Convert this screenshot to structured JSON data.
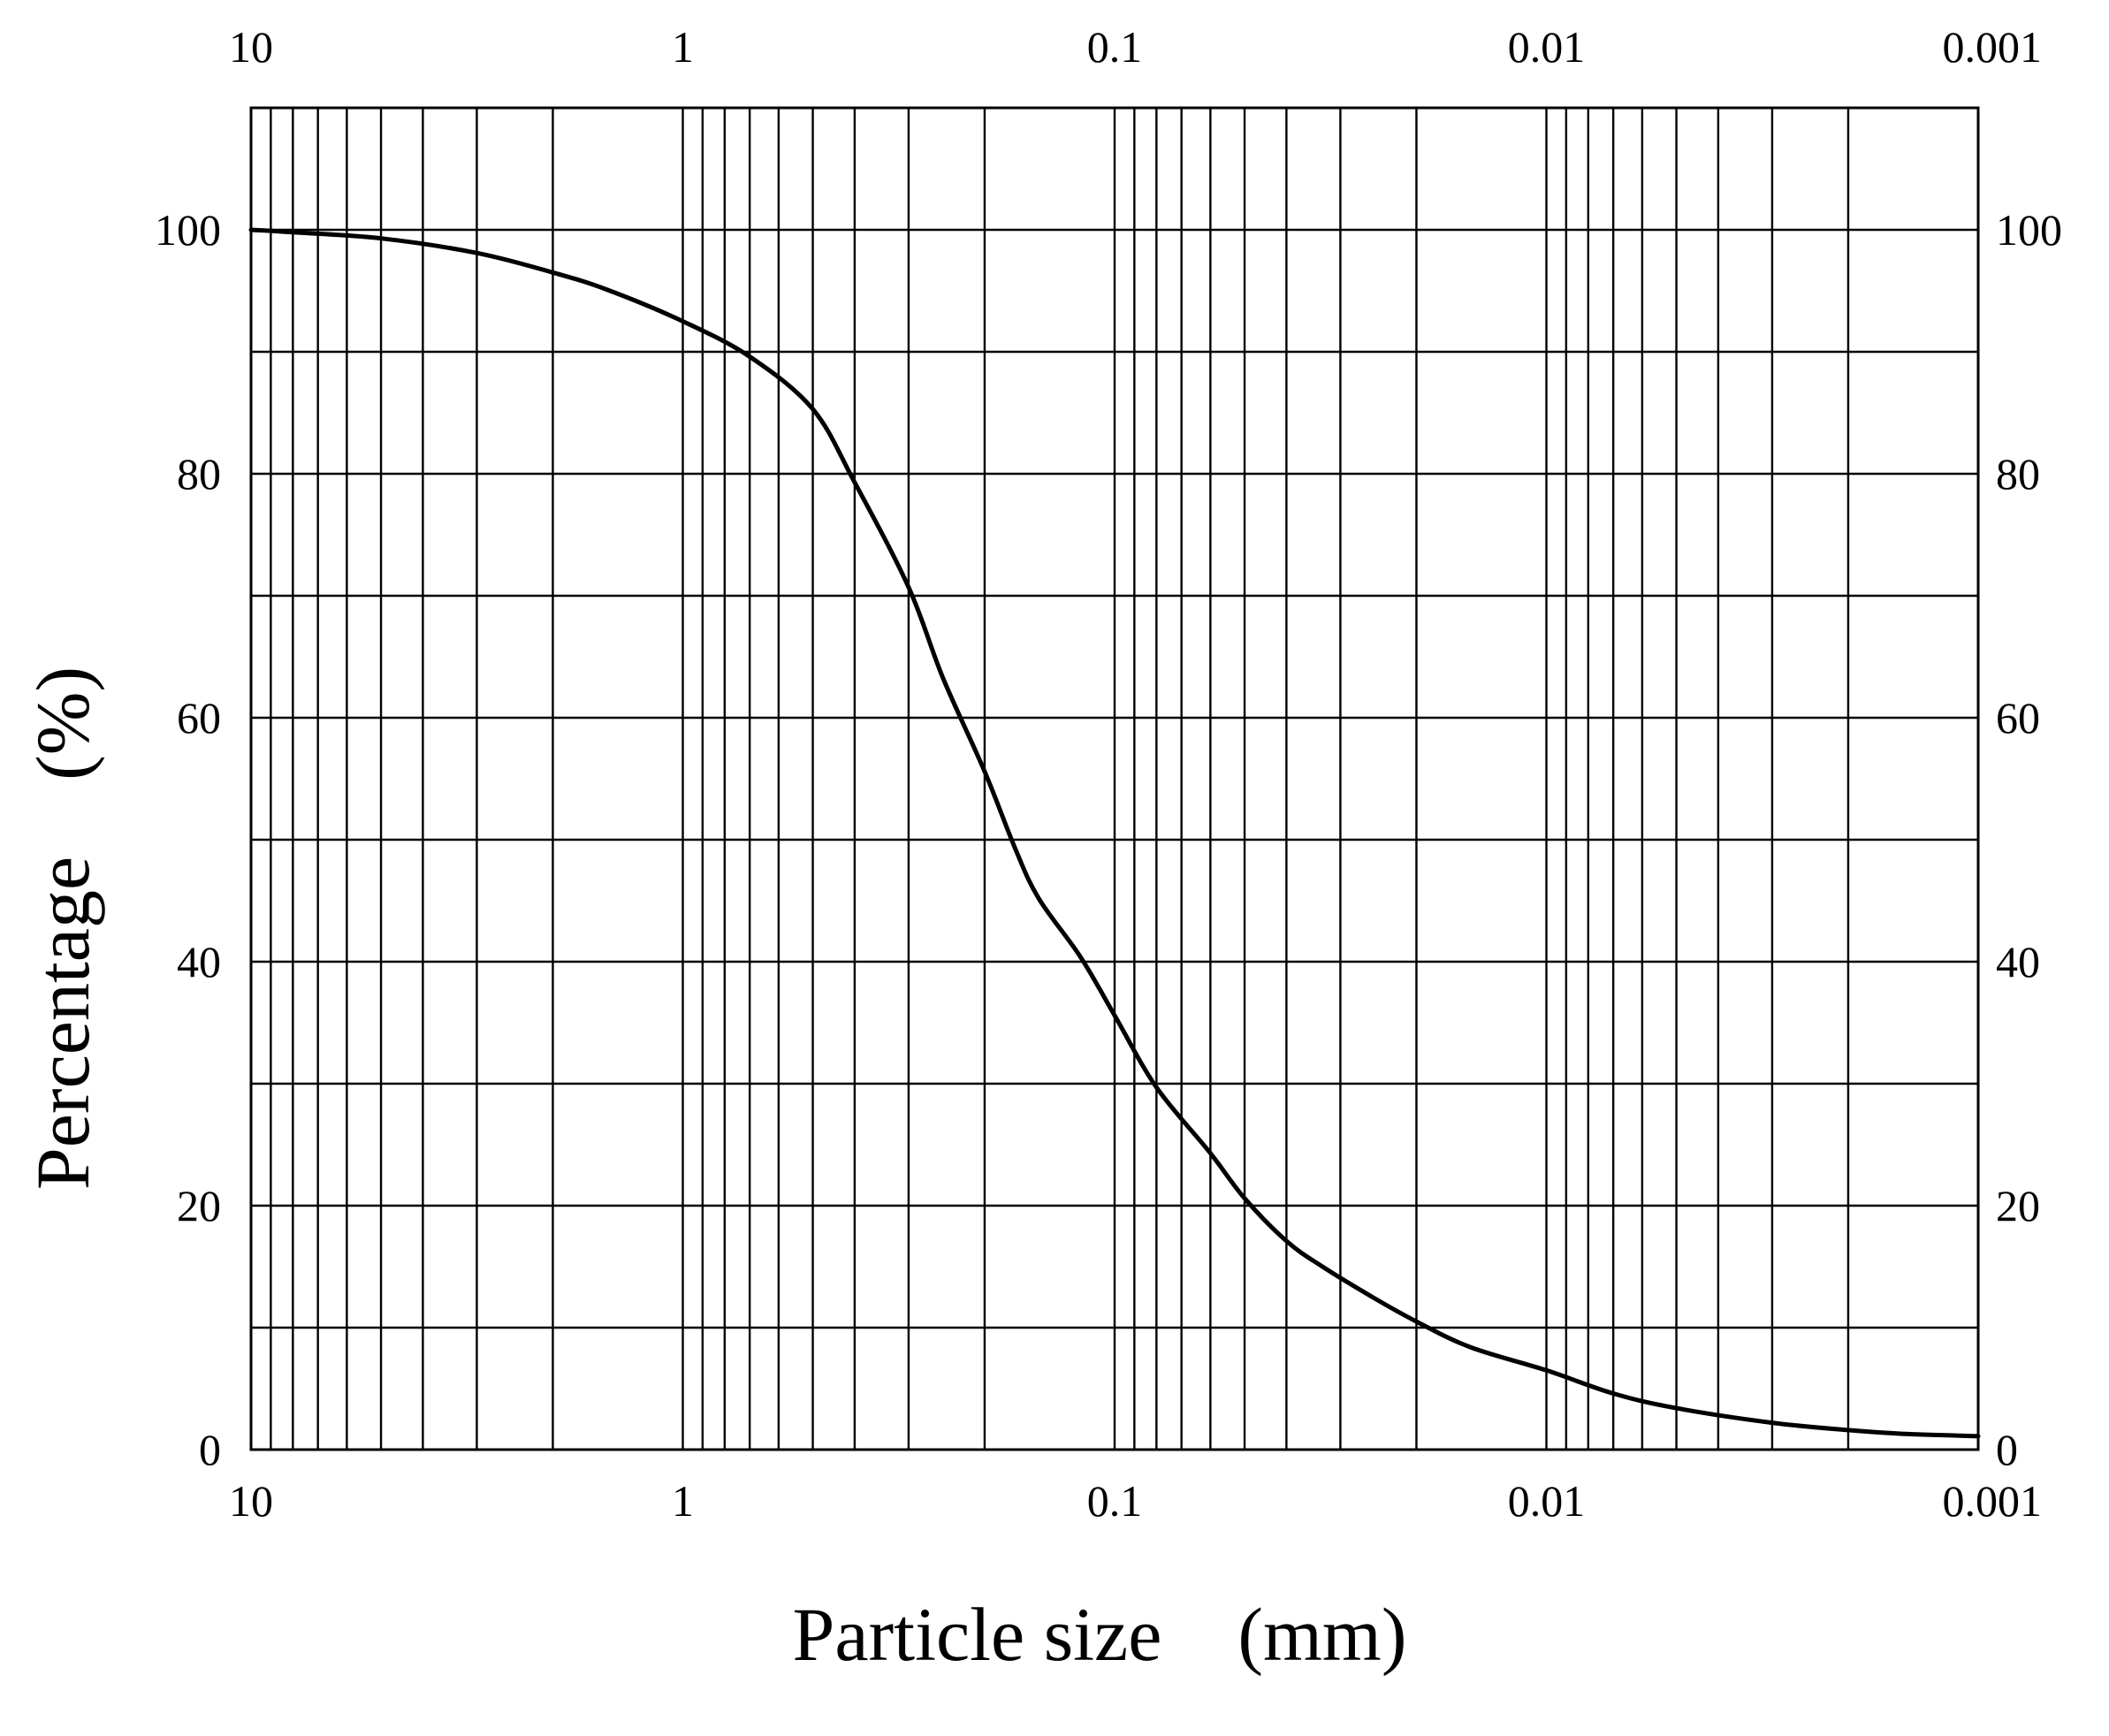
{
  "chart_data": {
    "type": "line",
    "xlabel": "Particle size　(mm)",
    "ylabel": "Percentage　(%)",
    "x_scale": "log",
    "x_reversed": true,
    "xlim": [
      10,
      0.001
    ],
    "ylim": [
      0,
      110
    ],
    "grid": true,
    "x_ticks": [
      {
        "value": 10,
        "label": "10"
      },
      {
        "value": 1,
        "label": "1"
      },
      {
        "value": 0.1,
        "label": "0.1"
      },
      {
        "value": 0.01,
        "label": "0.01"
      },
      {
        "value": 0.001,
        "label": "0.001"
      }
    ],
    "y_ticks": [
      {
        "value": 0,
        "label": "0"
      },
      {
        "value": 20,
        "label": "20"
      },
      {
        "value": 40,
        "label": "40"
      },
      {
        "value": 60,
        "label": "60"
      },
      {
        "value": 80,
        "label": "80"
      },
      {
        "value": 100,
        "label": "100"
      }
    ],
    "y_gridlines": [
      0,
      10,
      20,
      30,
      40,
      50,
      60,
      70,
      80,
      90,
      100
    ],
    "series": [
      {
        "x": [
          10,
          8,
          5,
          3,
          2,
          1.5,
          1,
          0.7,
          0.5,
          0.4,
          0.3,
          0.25,
          0.2,
          0.17,
          0.15,
          0.12,
          0.1,
          0.08,
          0.06,
          0.05,
          0.04,
          0.033,
          0.025,
          0.02,
          0.015,
          0.01,
          0.007,
          0.005,
          0.003,
          0.002,
          0.0015,
          0.001
        ],
        "y": [
          100,
          99.8,
          99.3,
          98.1,
          96.5,
          95.1,
          92.5,
          89.6,
          85.3,
          79.3,
          70.7,
          63.3,
          55.6,
          49.3,
          45.2,
          40.4,
          35.6,
          29.7,
          24.3,
          20.6,
          17.1,
          15.0,
          12.4,
          10.5,
          8.4,
          6.5,
          4.6,
          3.4,
          2.2,
          1.6,
          1.3,
          1.1
        ]
      }
    ]
  }
}
